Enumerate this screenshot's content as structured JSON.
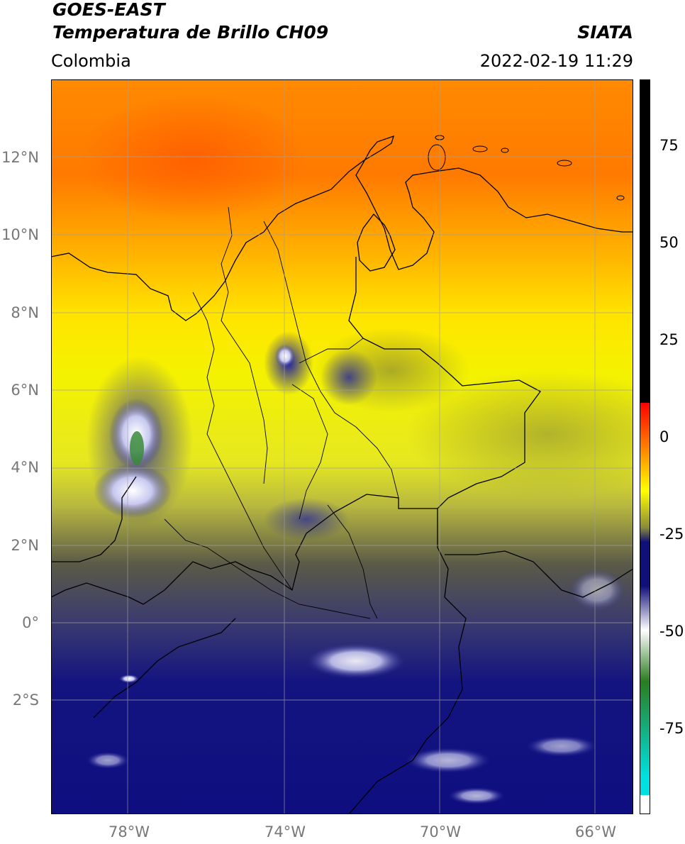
{
  "header": {
    "satellite": "GOES-EAST",
    "product": "Temperatura de Brillo CH09",
    "region": "Colombia",
    "source": "SIATA",
    "datetime": "2022-02-19 11:29"
  },
  "map": {
    "lat_ticks": [
      "12°N",
      "10°N",
      "8°N",
      "6°N",
      "4°N",
      "2°N",
      "0°",
      "2°S"
    ],
    "lon_ticks": [
      "78°W",
      "74°W",
      "70°W",
      "66°W"
    ]
  },
  "colorbar": {
    "ticks": [
      "75",
      "50",
      "25",
      "0",
      "-25",
      "-50",
      "-75"
    ],
    "colors": {
      "hot": "#000000",
      "red": "#ff0000",
      "orange": "#ff7f00",
      "yellow": "#ffff00",
      "olive": "#8a8a3a",
      "navy": "#10107a",
      "white": "#ffffff",
      "green": "#2a7d1f",
      "cyan": "#00e0e0"
    }
  }
}
